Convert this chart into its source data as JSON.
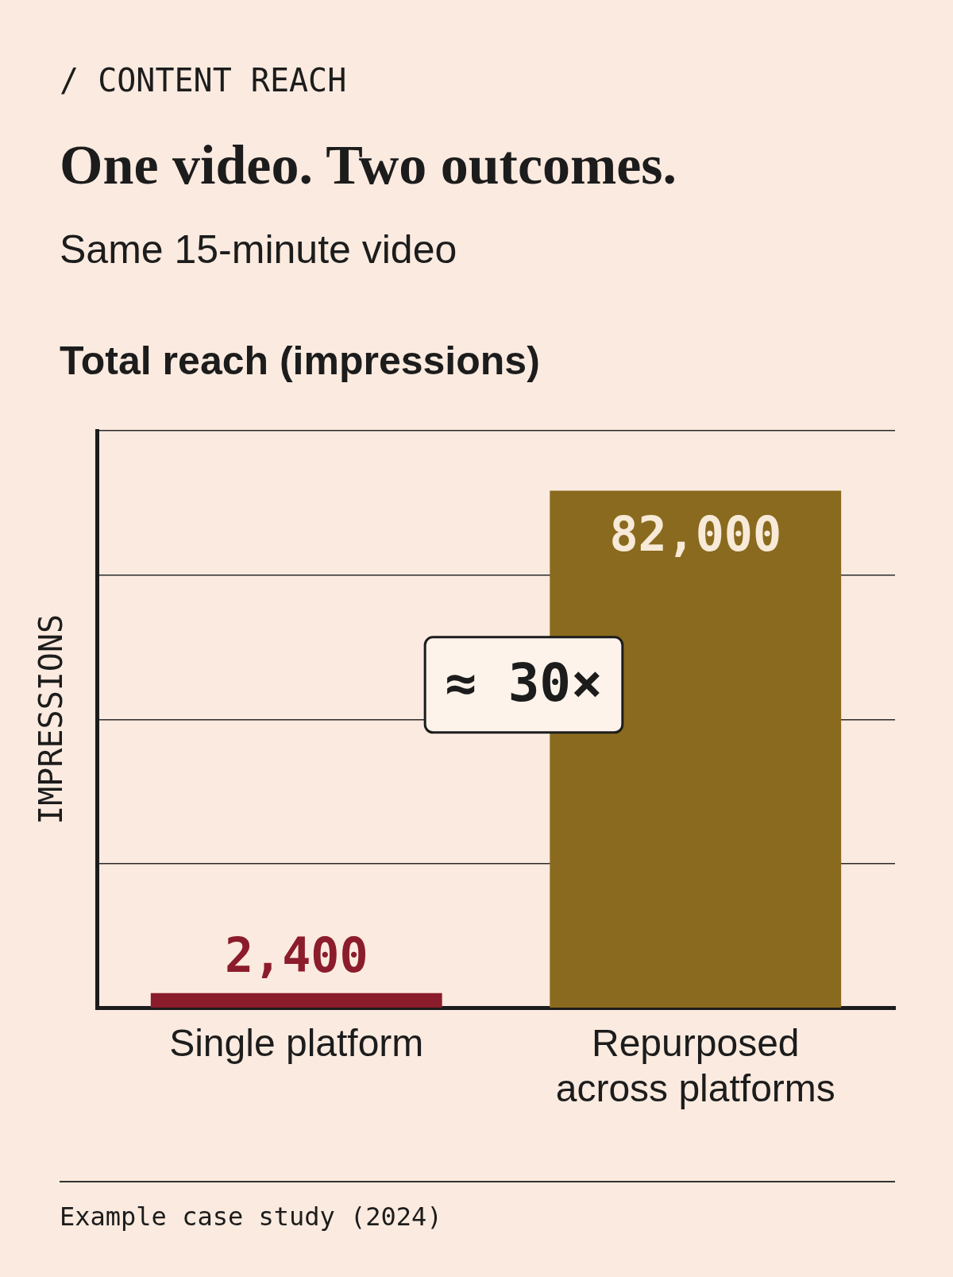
{
  "chart_data": {
    "type": "bar",
    "title": "One video. Two outcomes.",
    "subtitle": "Same 15-minute video",
    "ylabel": "IMPRESSIONS",
    "annotations": [
      "/ CONTENT REACH",
      "Total reach (impressions)",
      "≈ 30×",
      "Example case study (2024)"
    ],
    "categories": [
      "Single platform",
      "Repurposed across platforms"
    ],
    "values": [
      2400,
      82000
    ],
    "colors": [
      "#8b1c2c",
      "#8a6a1e"
    ],
    "value_labels": [
      "2,400",
      "82,000"
    ],
    "ylim": [
      0,
      91500
    ],
    "grid": "y",
    "legend": false,
    "tick_labels": "x"
  }
}
